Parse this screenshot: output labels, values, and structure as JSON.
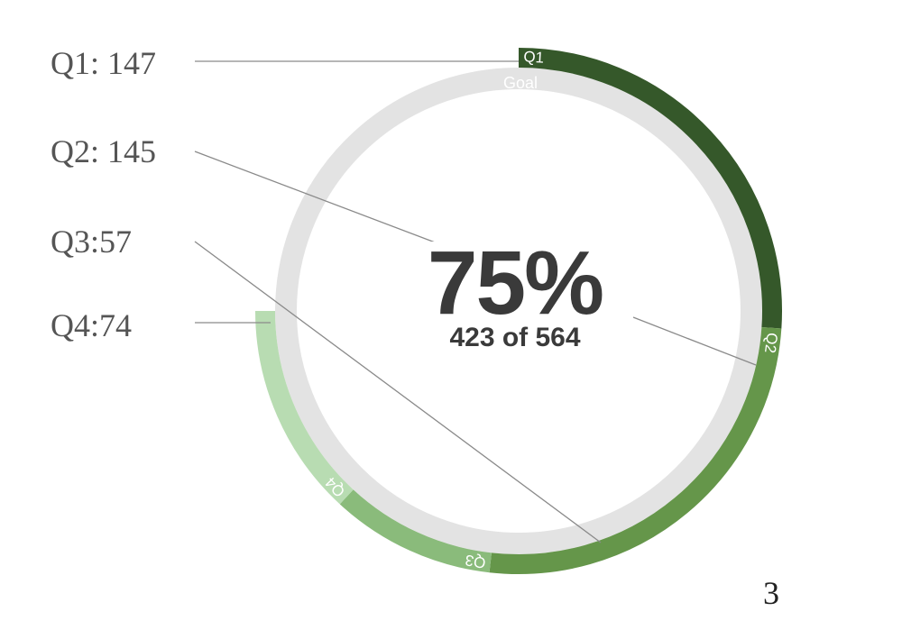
{
  "chart_data": {
    "type": "radial-progress",
    "total": 423,
    "goal": 564,
    "percent_label": "75%",
    "subtitle": "423 of 564",
    "goal_label": "Goal",
    "series": [
      {
        "name": "Q1",
        "value": 147,
        "legend": "Q1: 147",
        "color": "#35582a"
      },
      {
        "name": "Q2",
        "value": 145,
        "legend": "Q2: 145",
        "color": "#65964a"
      },
      {
        "name": "Q3",
        "value": 57,
        "legend": "Q3:57",
        "color": "#8abb7b"
      },
      {
        "name": "Q4",
        "value": 74,
        "legend": "Q4:74",
        "color": "#b8dcb2"
      }
    ],
    "goal_track_color": "#e3e3e3"
  },
  "page_number": "3"
}
